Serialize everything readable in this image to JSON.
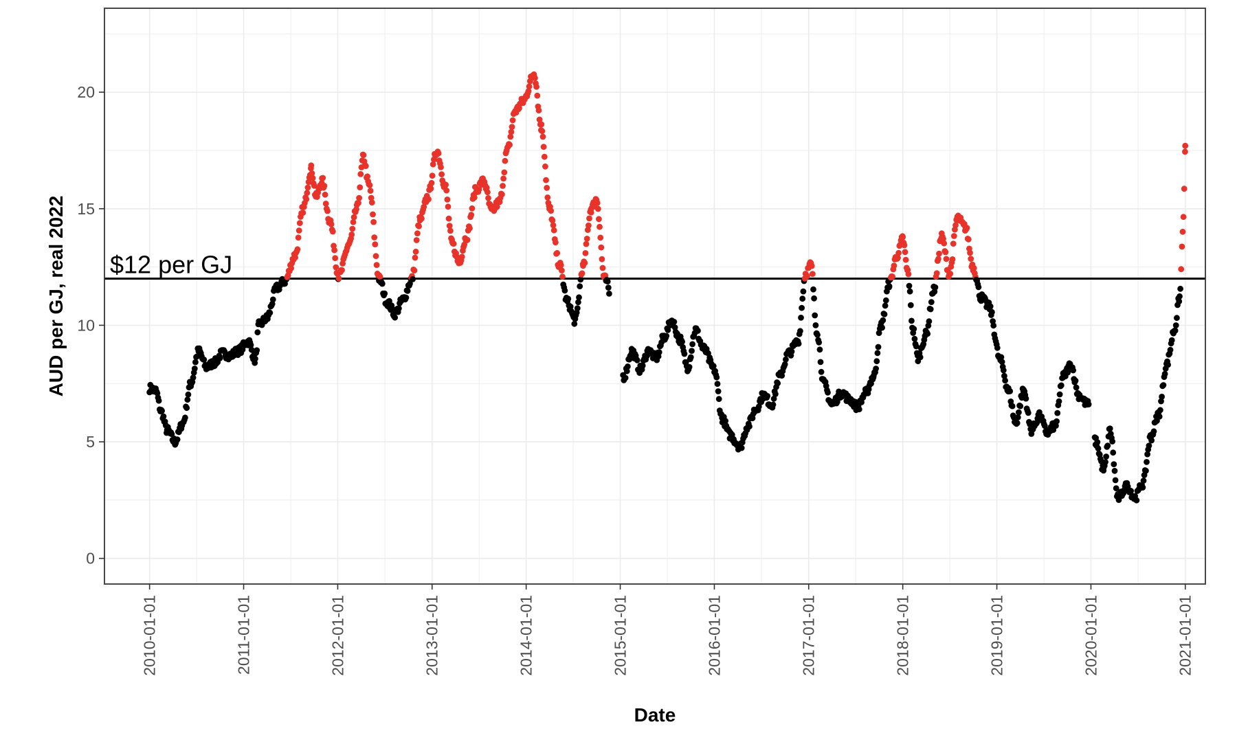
{
  "chart_data": {
    "type": "scatter",
    "title": "",
    "xlabel": "Date",
    "ylabel": "AUD per GJ, real 2022",
    "x_axis_type": "date",
    "xlim": [
      "2009-07-10",
      "2021-03-20"
    ],
    "ylim": [
      -1.1,
      23.6
    ],
    "x_ticks": [
      "2010-01-01",
      "2011-01-01",
      "2012-01-01",
      "2013-01-01",
      "2014-01-01",
      "2015-01-01",
      "2016-01-01",
      "2017-01-01",
      "2018-01-01",
      "2019-01-01",
      "2020-01-01",
      "2021-01-01"
    ],
    "y_ticks": [
      0,
      5,
      10,
      15,
      20
    ],
    "y_tick_labels": [
      "0",
      "5",
      "10",
      "15",
      "20"
    ],
    "grid": true,
    "legend": "none",
    "threshold": {
      "value": 12,
      "label": "$12 per GJ",
      "color": "#000000"
    },
    "colors": {
      "above_threshold": "#e8332a",
      "below_threshold": "#000000",
      "grid": "#ebebeb",
      "panel_border": "#333333"
    },
    "series": [
      {
        "color_rule": "red when value > 12, black otherwise",
        "anchors": [
          [
            "2010-01-01",
            7.3
          ],
          [
            "2010-01-25",
            7.2
          ],
          [
            "2010-02-15",
            6.3
          ],
          [
            "2010-03-10",
            5.5
          ],
          [
            "2010-04-10",
            5.0
          ],
          [
            "2010-05-10",
            5.8
          ],
          [
            "2010-06-10",
            7.5
          ],
          [
            "2010-07-10",
            8.9
          ],
          [
            "2010-08-10",
            8.2
          ],
          [
            "2010-09-10",
            8.4
          ],
          [
            "2010-10-10",
            8.8
          ],
          [
            "2010-11-10",
            8.7
          ],
          [
            "2010-12-10",
            8.9
          ],
          [
            "2011-01-20",
            9.3
          ],
          [
            "2011-02-15",
            8.5
          ],
          [
            "2011-03-01",
            10.0
          ],
          [
            "2011-04-01",
            10.3
          ],
          [
            "2011-05-10",
            11.6
          ],
          [
            "2011-06-10",
            11.9
          ],
          [
            "2011-07-20",
            13.0
          ],
          [
            "2011-08-20",
            15.0
          ],
          [
            "2011-09-20",
            16.7
          ],
          [
            "2011-10-10",
            15.5
          ],
          [
            "2011-11-01",
            16.2
          ],
          [
            "2011-12-01",
            14.5
          ],
          [
            "2012-01-05",
            12.1
          ],
          [
            "2012-02-15",
            13.5
          ],
          [
            "2012-03-15",
            15.0
          ],
          [
            "2012-04-10",
            17.2
          ],
          [
            "2012-05-01",
            16.0
          ],
          [
            "2012-06-10",
            12.0
          ],
          [
            "2012-07-10",
            11.0
          ],
          [
            "2012-08-10",
            10.5
          ],
          [
            "2012-09-10",
            11.1
          ],
          [
            "2012-10-15",
            12.0
          ],
          [
            "2012-11-15",
            14.5
          ],
          [
            "2012-12-15",
            15.5
          ],
          [
            "2013-01-20",
            17.5
          ],
          [
            "2013-02-20",
            16.0
          ],
          [
            "2013-03-20",
            13.5
          ],
          [
            "2013-04-15",
            12.7
          ],
          [
            "2013-05-15",
            13.8
          ],
          [
            "2013-06-20",
            15.8
          ],
          [
            "2013-07-20",
            16.2
          ],
          [
            "2013-08-20",
            14.9
          ],
          [
            "2013-09-20",
            15.3
          ],
          [
            "2013-10-20",
            17.5
          ],
          [
            "2013-11-20",
            19.2
          ],
          [
            "2013-12-20",
            19.6
          ],
          [
            "2014-02-01",
            20.8
          ],
          [
            "2014-03-01",
            18.5
          ],
          [
            "2014-04-01",
            15.0
          ],
          [
            "2014-05-10",
            12.6
          ],
          [
            "2014-06-10",
            11.0
          ],
          [
            "2014-07-10",
            10.2
          ],
          [
            "2014-08-10",
            12.5
          ],
          [
            "2014-09-10",
            15.0
          ],
          [
            "2014-10-01",
            15.4
          ],
          [
            "2014-11-01",
            12.0
          ],
          [
            "2015-01-15",
            7.8
          ],
          [
            "2015-02-15",
            8.9
          ],
          [
            "2015-03-20",
            8.1
          ],
          [
            "2015-04-20",
            8.9
          ],
          [
            "2015-05-20",
            8.6
          ],
          [
            "2015-06-20",
            9.5
          ],
          [
            "2015-07-20",
            10.2
          ],
          [
            "2015-08-20",
            9.4
          ],
          [
            "2015-09-20",
            8.2
          ],
          [
            "2015-10-20",
            9.8
          ],
          [
            "2015-11-20",
            9.0
          ],
          [
            "2016-01-01",
            8.1
          ],
          [
            "2016-02-01",
            6.0
          ],
          [
            "2016-03-01",
            5.3
          ],
          [
            "2016-04-10",
            4.8
          ],
          [
            "2016-05-10",
            5.7
          ],
          [
            "2016-06-10",
            6.4
          ],
          [
            "2016-07-10",
            7.0
          ],
          [
            "2016-08-10",
            6.6
          ],
          [
            "2016-09-10",
            7.8
          ],
          [
            "2016-10-15",
            8.8
          ],
          [
            "2016-11-20",
            9.3
          ],
          [
            "2016-12-20",
            12.2
          ],
          [
            "2017-01-10",
            12.6
          ],
          [
            "2017-02-01",
            9.8
          ],
          [
            "2017-03-01",
            7.5
          ],
          [
            "2017-04-01",
            6.6
          ],
          [
            "2017-05-10",
            7.1
          ],
          [
            "2017-06-10",
            6.8
          ],
          [
            "2017-07-10",
            6.5
          ],
          [
            "2017-08-10",
            7.1
          ],
          [
            "2017-09-10",
            7.8
          ],
          [
            "2017-10-10",
            10.0
          ],
          [
            "2017-11-10",
            11.8
          ],
          [
            "2017-12-10",
            13.0
          ],
          [
            "2018-01-01",
            13.7
          ],
          [
            "2018-01-20",
            12.3
          ],
          [
            "2018-02-10",
            9.8
          ],
          [
            "2018-03-01",
            8.6
          ],
          [
            "2018-04-01",
            9.6
          ],
          [
            "2018-05-01",
            11.5
          ],
          [
            "2018-06-01",
            13.8
          ],
          [
            "2018-07-01",
            12.2
          ],
          [
            "2018-08-01",
            14.6
          ],
          [
            "2018-09-01",
            14.2
          ],
          [
            "2018-10-01",
            12.5
          ],
          [
            "2018-11-01",
            11.2
          ],
          [
            "2018-12-01",
            10.8
          ],
          [
            "2019-01-15",
            8.5
          ],
          [
            "2019-02-15",
            7.2
          ],
          [
            "2019-03-15",
            5.8
          ],
          [
            "2019-04-15",
            7.2
          ],
          [
            "2019-05-15",
            5.5
          ],
          [
            "2019-06-15",
            6.1
          ],
          [
            "2019-07-15",
            5.4
          ],
          [
            "2019-08-15",
            5.7
          ],
          [
            "2019-09-15",
            7.8
          ],
          [
            "2019-10-15",
            8.3
          ],
          [
            "2019-11-15",
            7.0
          ],
          [
            "2019-12-20",
            6.6
          ],
          [
            "2020-01-20",
            5.0
          ],
          [
            "2020-02-20",
            3.8
          ],
          [
            "2020-03-15",
            5.5
          ],
          [
            "2020-04-15",
            2.6
          ],
          [
            "2020-05-20",
            3.1
          ],
          [
            "2020-06-20",
            2.6
          ],
          [
            "2020-07-20",
            3.2
          ],
          [
            "2020-08-20",
            5.2
          ],
          [
            "2020-09-20",
            6.2
          ],
          [
            "2020-10-20",
            8.3
          ],
          [
            "2020-11-20",
            9.8
          ],
          [
            "2020-12-10",
            11.2
          ],
          [
            "2020-12-25",
            14.5
          ],
          [
            "2021-01-01",
            17.7
          ]
        ]
      }
    ]
  }
}
